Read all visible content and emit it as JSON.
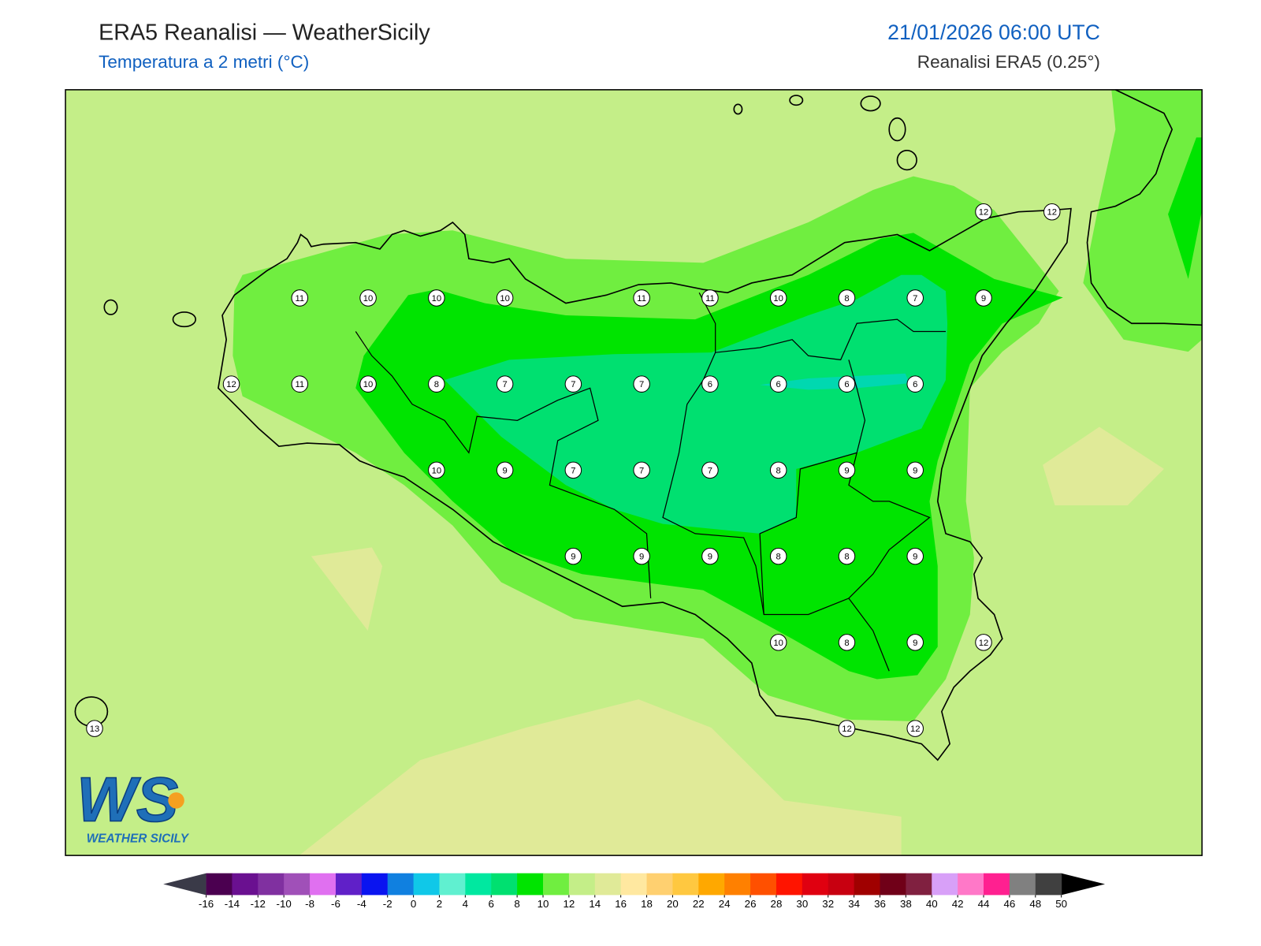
{
  "header": {
    "title": "ERA5 Reanalisi — WeatherSicily",
    "subtitle": "Temperatura a 2 metri (°C)",
    "datetime": "21/01/2026 06:00 UTC",
    "source": "Reanalisi ERA5 (0.25°)"
  },
  "stations": [
    [
      null,
      null,
      null,
      null,
      null,
      null,
      null,
      null,
      null,
      null,
      null,
      null,
      null,
      12,
      12
    ],
    [
      null,
      null,
      null,
      11,
      10,
      10,
      10,
      null,
      11,
      11,
      10,
      8,
      7,
      9,
      null
    ],
    [
      null,
      null,
      12,
      11,
      10,
      8,
      7,
      7,
      7,
      6,
      6,
      6,
      6,
      null,
      null
    ],
    [
      null,
      null,
      null,
      null,
      null,
      10,
      9,
      7,
      7,
      7,
      8,
      9,
      9,
      null,
      null
    ],
    [
      null,
      null,
      null,
      null,
      null,
      null,
      null,
      9,
      9,
      9,
      8,
      8,
      9,
      null,
      null
    ],
    [
      null,
      null,
      null,
      null,
      null,
      null,
      null,
      null,
      null,
      null,
      10,
      8,
      9,
      12,
      null
    ],
    [
      13,
      null,
      null,
      null,
      null,
      null,
      null,
      null,
      null,
      null,
      null,
      12,
      12,
      null,
      null
    ]
  ],
  "colorbar": {
    "ticks": [
      -16,
      -14,
      -12,
      -10,
      -8,
      -6,
      -4,
      -2,
      0,
      2,
      4,
      6,
      8,
      10,
      12,
      14,
      16,
      18,
      20,
      22,
      24,
      26,
      28,
      30,
      32,
      34,
      36,
      38,
      40,
      42,
      44,
      46,
      48,
      50
    ],
    "colors": [
      "#4b0050",
      "#6a1090",
      "#8030a0",
      "#a050b8",
      "#e070f0",
      "#6020c8",
      "#0a14f0",
      "#1080e0",
      "#10c8e8",
      "#60f0d0",
      "#00e8a0",
      "#00e070",
      "#00e400",
      "#70ee40",
      "#c4ee88",
      "#e0ea98",
      "#ffe8a0",
      "#ffd070",
      "#ffc840",
      "#ffa800",
      "#ff8000",
      "#ff5000",
      "#ff1400",
      "#e00010",
      "#c80010",
      "#a00000",
      "#700018",
      "#802040",
      "#d8a0f8",
      "#ff78c8",
      "#ff2090",
      "#808080",
      "#404040"
    ],
    "under_color": "#3a3a48",
    "over_color": "#000000"
  },
  "logo": {
    "letters": "WS",
    "text": "WEATHER SICILY"
  }
}
